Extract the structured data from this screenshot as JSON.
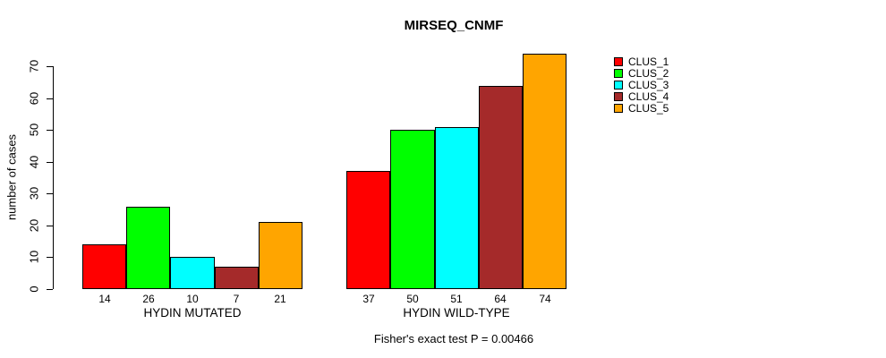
{
  "chart_data": {
    "type": "bar",
    "title": "MIRSEQ_CNMF",
    "ylabel": "number of cases",
    "ylim": [
      0,
      74
    ],
    "yticks": [
      0,
      10,
      20,
      30,
      40,
      50,
      60,
      70
    ],
    "grid": false,
    "categories": [
      "HYDIN MUTATED",
      "HYDIN WILD-TYPE"
    ],
    "series": [
      {
        "name": "CLUS_1",
        "color": "#FF0000",
        "values": [
          14,
          37
        ]
      },
      {
        "name": "CLUS_2",
        "color": "#00FF00",
        "values": [
          26,
          50
        ]
      },
      {
        "name": "CLUS_3",
        "color": "#00FFFF",
        "values": [
          10,
          51
        ]
      },
      {
        "name": "CLUS_4",
        "color": "#A52A2A",
        "values": [
          7,
          64
        ]
      },
      {
        "name": "CLUS_5",
        "color": "#FFA500",
        "values": [
          21,
          74
        ]
      }
    ],
    "legend": {
      "position": "right-outside",
      "entries": [
        "CLUS_1",
        "CLUS_2",
        "CLUS_3",
        "CLUS_4",
        "CLUS_5"
      ]
    },
    "show_value_labels": true,
    "annotation": "Fisher's exact test P = 0.00466",
    "text_color": "#000000",
    "background_color": "#FFFFFF"
  }
}
